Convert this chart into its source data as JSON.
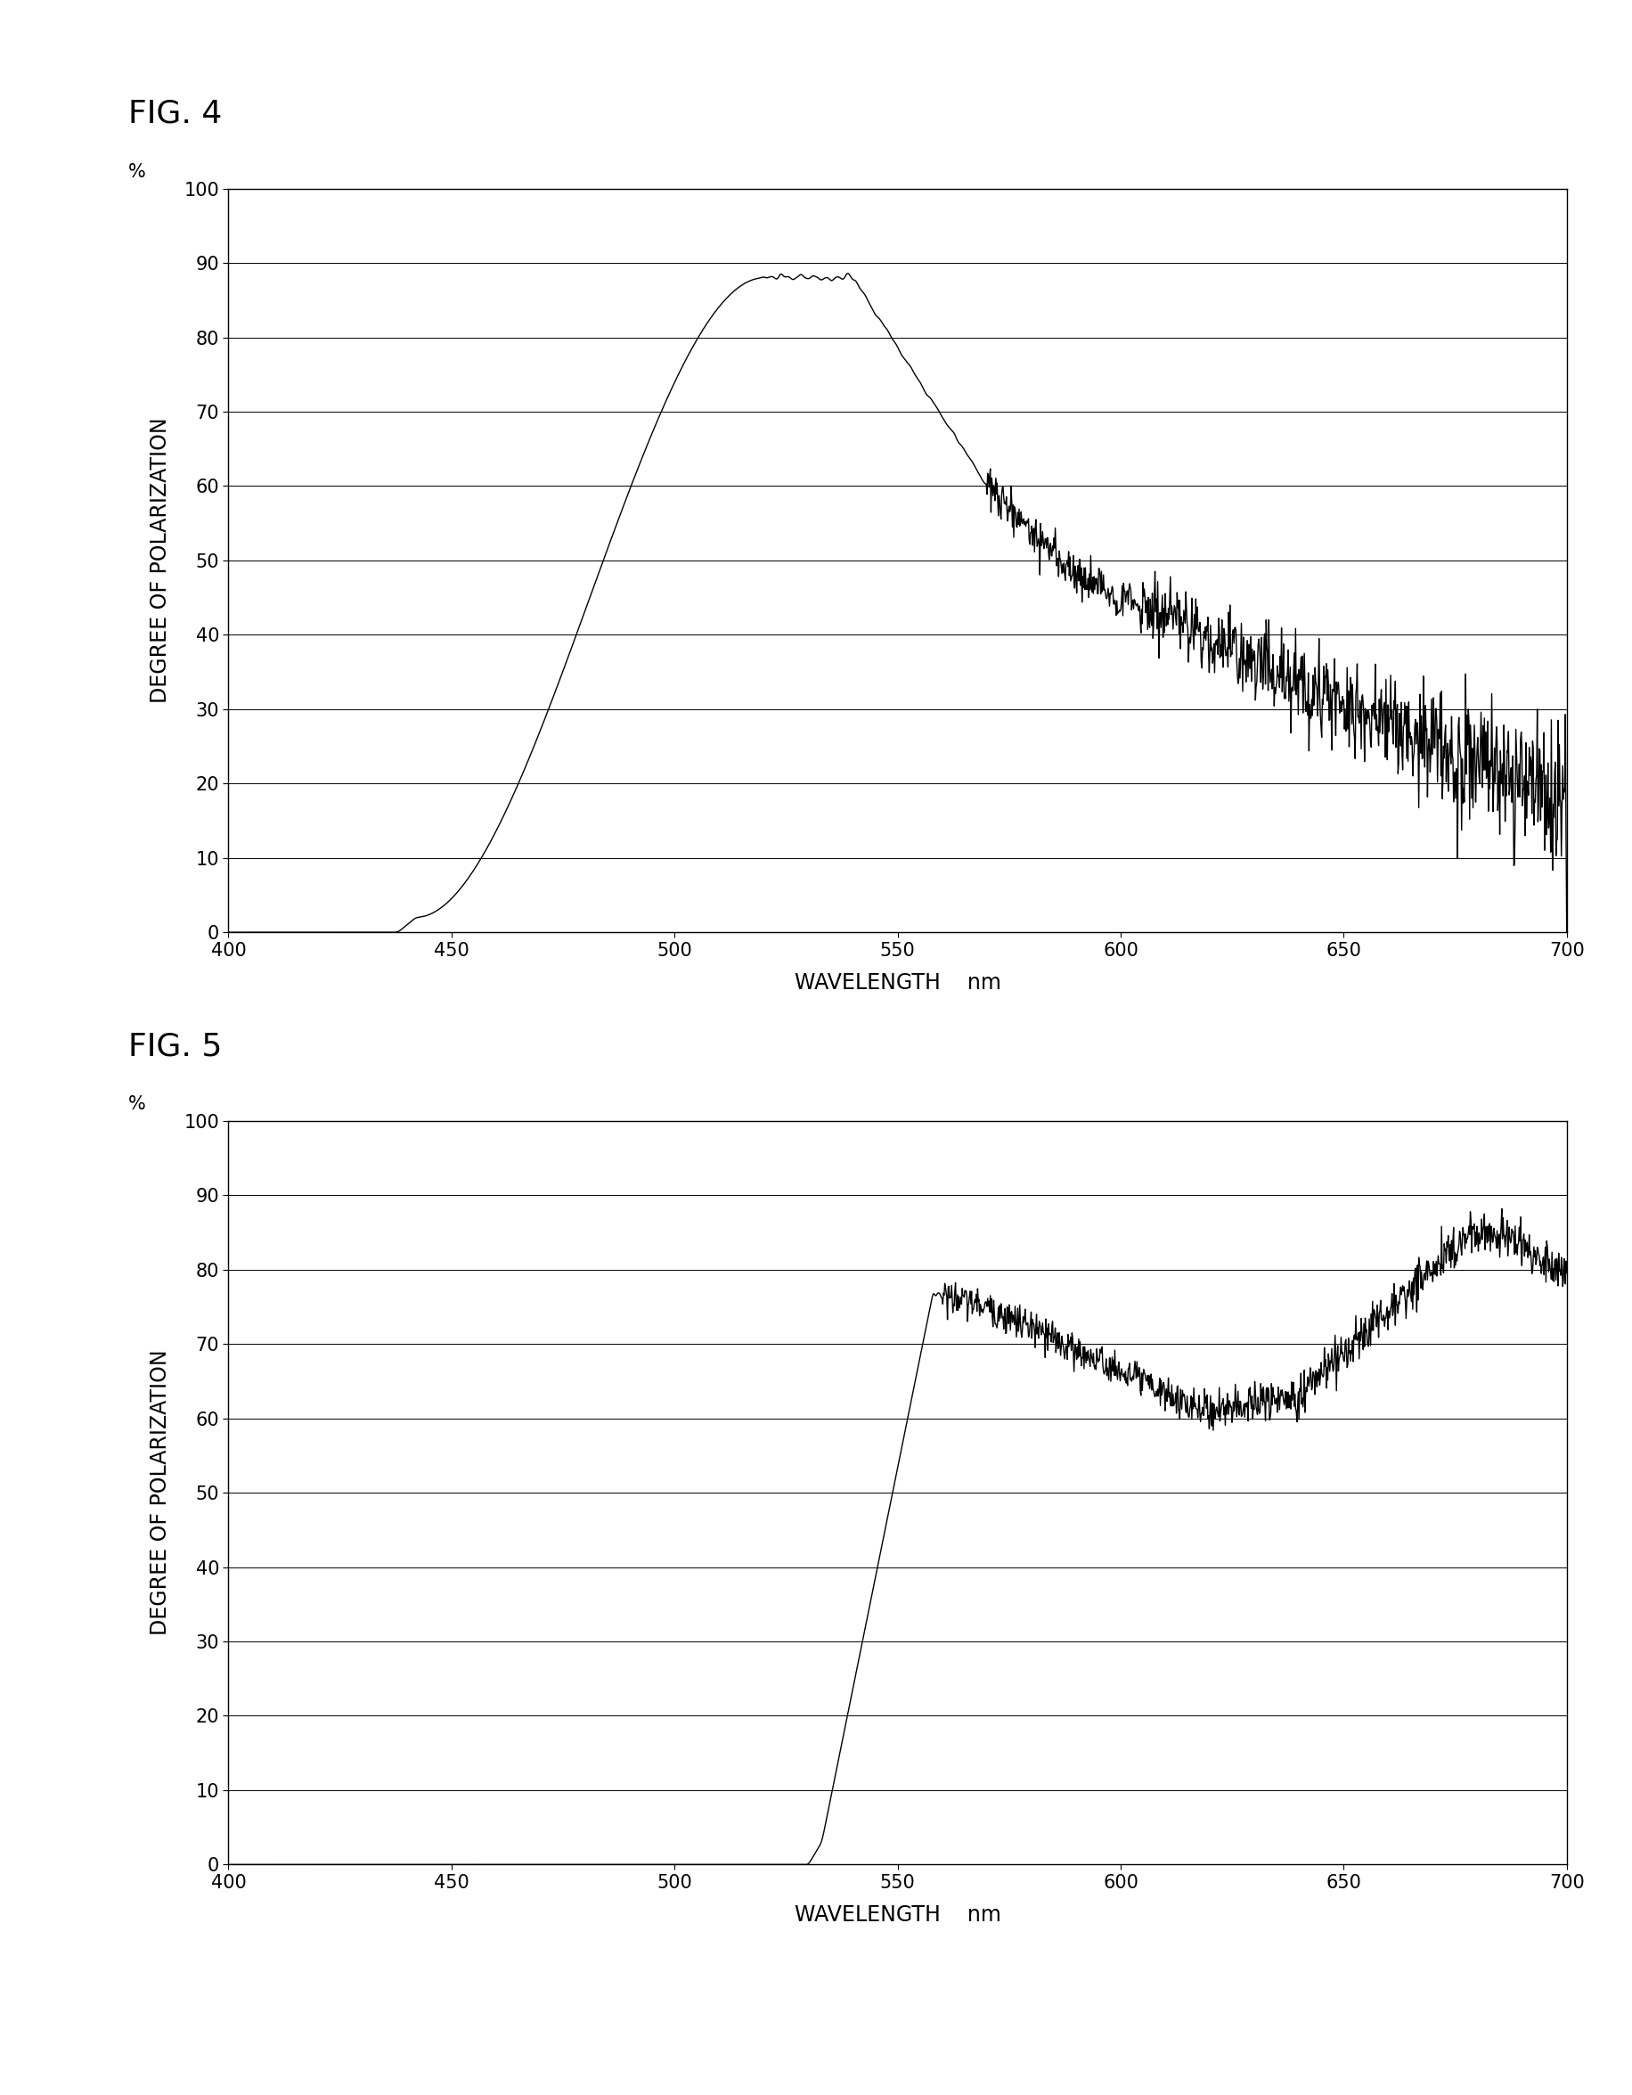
{
  "fig4_title": "FIG. 4",
  "fig5_title": "FIG. 5",
  "xlabel": "WAVELENGTH    nm",
  "ylabel": "DEGREE OF POLARIZATION",
  "yunits": "%",
  "xlim": [
    400,
    700
  ],
  "ylim": [
    0,
    100
  ],
  "xticks": [
    400,
    450,
    500,
    550,
    600,
    650,
    700
  ],
  "yticks": [
    0,
    10,
    20,
    30,
    40,
    50,
    60,
    70,
    80,
    90,
    100
  ],
  "background_color": "#ffffff",
  "line_color": "#000000",
  "grid_color": "#000000",
  "title_fontsize": 26,
  "axis_label_fontsize": 17,
  "tick_fontsize": 15
}
